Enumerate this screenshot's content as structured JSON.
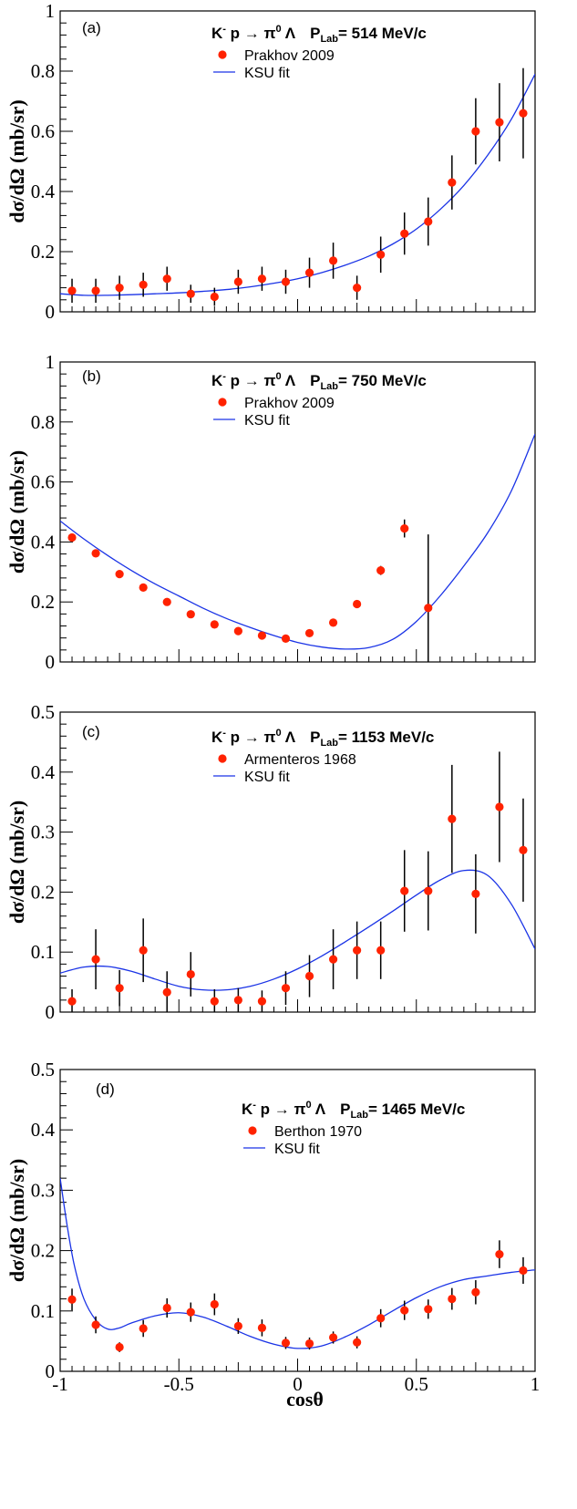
{
  "chart_data": [
    {
      "type": "scatter",
      "panel_label": "(a)",
      "title_parts": {
        "k": "K",
        "kminus": "-",
        "p_arrow": " p → π",
        "pi_sup": "0",
        "lambda": " Λ",
        "plab": "P",
        "lab_sub": "Lab",
        "plab_value": "= 514 MeV/c"
      },
      "legend": {
        "data": "Prakhov 2009",
        "fit": "KSU fit"
      },
      "ylabel": "dσ/dΩ (mb/sr)",
      "ylim": [
        0,
        1
      ],
      "yticks": [
        "0",
        "0.2",
        "0.4",
        "0.6",
        "0.8",
        "1"
      ],
      "xlim": [
        -1,
        1
      ],
      "series": [
        {
          "x": [
            -0.95,
            -0.85,
            -0.75,
            -0.65,
            -0.55,
            -0.45,
            -0.35,
            -0.25,
            -0.15,
            -0.05,
            0.05,
            0.15,
            0.25,
            0.35,
            0.45,
            0.55,
            0.65,
            0.75,
            0.85,
            0.95
          ],
          "y": [
            0.07,
            0.07,
            0.08,
            0.09,
            0.11,
            0.06,
            0.05,
            0.1,
            0.11,
            0.1,
            0.13,
            0.17,
            0.08,
            0.19,
            0.26,
            0.3,
            0.43,
            0.6,
            0.63,
            0.66
          ],
          "err": [
            0.04,
            0.04,
            0.04,
            0.04,
            0.04,
            0.03,
            0.03,
            0.04,
            0.04,
            0.04,
            0.05,
            0.06,
            0.04,
            0.06,
            0.07,
            0.08,
            0.09,
            0.11,
            0.13,
            0.15
          ]
        }
      ],
      "fit": {
        "x": [
          -1,
          -0.9,
          -0.8,
          -0.7,
          -0.6,
          -0.5,
          -0.4,
          -0.3,
          -0.2,
          -0.1,
          0,
          0.1,
          0.2,
          0.3,
          0.4,
          0.5,
          0.6,
          0.7,
          0.8,
          0.9,
          1.0
        ],
        "y": [
          0.06,
          0.055,
          0.055,
          0.057,
          0.06,
          0.063,
          0.068,
          0.074,
          0.083,
          0.095,
          0.11,
          0.13,
          0.155,
          0.185,
          0.225,
          0.275,
          0.34,
          0.42,
          0.52,
          0.64,
          0.79
        ]
      }
    },
    {
      "type": "scatter",
      "panel_label": "(b)",
      "title_parts": {
        "k": "K",
        "kminus": "-",
        "p_arrow": " p → π",
        "pi_sup": "0",
        "lambda": " Λ",
        "plab": "P",
        "lab_sub": "Lab",
        "plab_value": "= 750 MeV/c"
      },
      "legend": {
        "data": "Prakhov 2009",
        "fit": "KSU fit"
      },
      "ylabel": "dσ/dΩ (mb/sr)",
      "ylim": [
        0,
        1
      ],
      "yticks": [
        "0",
        "0.2",
        "0.4",
        "0.6",
        "0.8",
        "1"
      ],
      "xlim": [
        -1,
        1
      ],
      "series": [
        {
          "x": [
            -0.95,
            -0.85,
            -0.75,
            -0.65,
            -0.55,
            -0.45,
            -0.35,
            -0.25,
            -0.15,
            -0.05,
            0.05,
            0.15,
            0.25,
            0.35,
            0.45,
            0.55,
            0.65,
            0.75,
            0.85,
            0.95
          ],
          "y": [
            0.415,
            0.362,
            0.293,
            0.248,
            0.2,
            0.159,
            0.125,
            0.103,
            0.088,
            0.078,
            0.096,
            0.131,
            0.193,
            0.305,
            0.445,
            0.18,
            null,
            null,
            null,
            null
          ],
          "err": [
            0.012,
            0.01,
            0.01,
            0.01,
            0.008,
            0.008,
            0.007,
            0.006,
            0.006,
            0.006,
            0.006,
            0.007,
            0.01,
            0.015,
            0.03,
            0.245,
            null,
            null,
            null,
            null
          ]
        }
      ],
      "fit": {
        "x": [
          -1,
          -0.9,
          -0.8,
          -0.7,
          -0.6,
          -0.5,
          -0.4,
          -0.3,
          -0.2,
          -0.1,
          0,
          0.1,
          0.2,
          0.3,
          0.4,
          0.5,
          0.6,
          0.7,
          0.8,
          0.9,
          1.0
        ],
        "y": [
          0.47,
          0.41,
          0.355,
          0.305,
          0.26,
          0.22,
          0.18,
          0.145,
          0.115,
          0.088,
          0.065,
          0.05,
          0.043,
          0.048,
          0.075,
          0.135,
          0.22,
          0.32,
          0.43,
          0.57,
          0.76
        ]
      }
    },
    {
      "type": "scatter",
      "panel_label": "(c)",
      "title_parts": {
        "k": "K",
        "kminus": "-",
        "p_arrow": " p → π",
        "pi_sup": "0",
        "lambda": " Λ",
        "plab": "P",
        "lab_sub": "Lab",
        "plab_value": "= 1153 MeV/c"
      },
      "legend": {
        "data": "Armenteros 1968",
        "fit": "KSU fit"
      },
      "ylabel": "dσ/dΩ (mb/sr)",
      "ylim": [
        0,
        0.5
      ],
      "yticks": [
        "0",
        "0.1",
        "0.2",
        "0.3",
        "0.4",
        "0.5"
      ],
      "xlim": [
        -1,
        1
      ],
      "series": [
        {
          "x": [
            -0.95,
            -0.85,
            -0.75,
            -0.65,
            -0.55,
            -0.45,
            -0.35,
            -0.25,
            -0.15,
            -0.05,
            0.05,
            0.15,
            0.25,
            0.35,
            0.45,
            0.55,
            0.65,
            0.75,
            0.85,
            0.95
          ],
          "y": [
            0.018,
            0.088,
            0.04,
            0.103,
            0.033,
            0.063,
            0.018,
            0.02,
            0.018,
            0.04,
            0.06,
            0.088,
            0.103,
            0.103,
            0.202,
            0.202,
            0.322,
            0.197,
            0.342,
            0.27
          ],
          "err": [
            0.02,
            0.05,
            0.03,
            0.053,
            0.035,
            0.037,
            0.02,
            0.02,
            0.018,
            0.028,
            0.035,
            0.05,
            0.048,
            0.048,
            0.068,
            0.066,
            0.09,
            0.066,
            0.092,
            0.086
          ]
        }
      ],
      "fit": {
        "x": [
          -1,
          -0.9,
          -0.8,
          -0.7,
          -0.6,
          -0.5,
          -0.4,
          -0.3,
          -0.2,
          -0.1,
          0,
          0.1,
          0.2,
          0.3,
          0.4,
          0.5,
          0.6,
          0.7,
          0.8,
          0.9,
          1.0
        ],
        "y": [
          0.065,
          0.075,
          0.076,
          0.068,
          0.055,
          0.043,
          0.037,
          0.037,
          0.043,
          0.055,
          0.072,
          0.093,
          0.117,
          0.142,
          0.168,
          0.195,
          0.22,
          0.236,
          0.228,
          0.18,
          0.105
        ]
      }
    },
    {
      "type": "scatter",
      "panel_label": "(d)",
      "title_parts": {
        "k": "K",
        "kminus": "-",
        "p_arrow": " p → π",
        "pi_sup": "0",
        "lambda": " Λ",
        "plab": "P",
        "lab_sub": "Lab",
        "plab_value": "= 1465 MeV/c"
      },
      "legend": {
        "data": "Berthon 1970",
        "fit": "KSU fit"
      },
      "ylabel": "dσ/dΩ (mb/sr)",
      "xlabel": "cosθ",
      "ylim": [
        0,
        0.5
      ],
      "yticks": [
        "0",
        "0.1",
        "0.2",
        "0.3",
        "0.4",
        "0.5"
      ],
      "xlim": [
        -1,
        1
      ],
      "xticks": [
        "-1",
        "-0.5",
        "0",
        "0.5",
        "1"
      ],
      "series": [
        {
          "x": [
            -0.95,
            -0.85,
            -0.75,
            -0.65,
            -0.55,
            -0.45,
            -0.35,
            -0.25,
            -0.15,
            -0.05,
            0.05,
            0.15,
            0.25,
            0.35,
            0.45,
            0.55,
            0.65,
            0.75,
            0.85,
            0.95
          ],
          "y": [
            0.119,
            0.077,
            0.04,
            0.071,
            0.105,
            0.098,
            0.111,
            0.075,
            0.072,
            0.047,
            0.046,
            0.056,
            0.048,
            0.088,
            0.101,
            0.103,
            0.12,
            0.131,
            0.194,
            0.167
          ],
          "err": [
            0.018,
            0.014,
            0.008,
            0.014,
            0.016,
            0.016,
            0.018,
            0.013,
            0.014,
            0.01,
            0.01,
            0.01,
            0.01,
            0.015,
            0.016,
            0.016,
            0.018,
            0.02,
            0.023,
            0.022
          ]
        }
      ],
      "fit": {
        "x": [
          -1,
          -0.97,
          -0.94,
          -0.9,
          -0.85,
          -0.8,
          -0.75,
          -0.7,
          -0.6,
          -0.5,
          -0.4,
          -0.3,
          -0.2,
          -0.1,
          0,
          0.1,
          0.2,
          0.3,
          0.4,
          0.5,
          0.6,
          0.7,
          0.8,
          0.9,
          1.0
        ],
        "y": [
          0.32,
          0.24,
          0.175,
          0.12,
          0.085,
          0.07,
          0.072,
          0.08,
          0.092,
          0.097,
          0.09,
          0.075,
          0.058,
          0.045,
          0.038,
          0.042,
          0.057,
          0.077,
          0.1,
          0.122,
          0.14,
          0.152,
          0.158,
          0.164,
          0.168
        ]
      }
    }
  ]
}
